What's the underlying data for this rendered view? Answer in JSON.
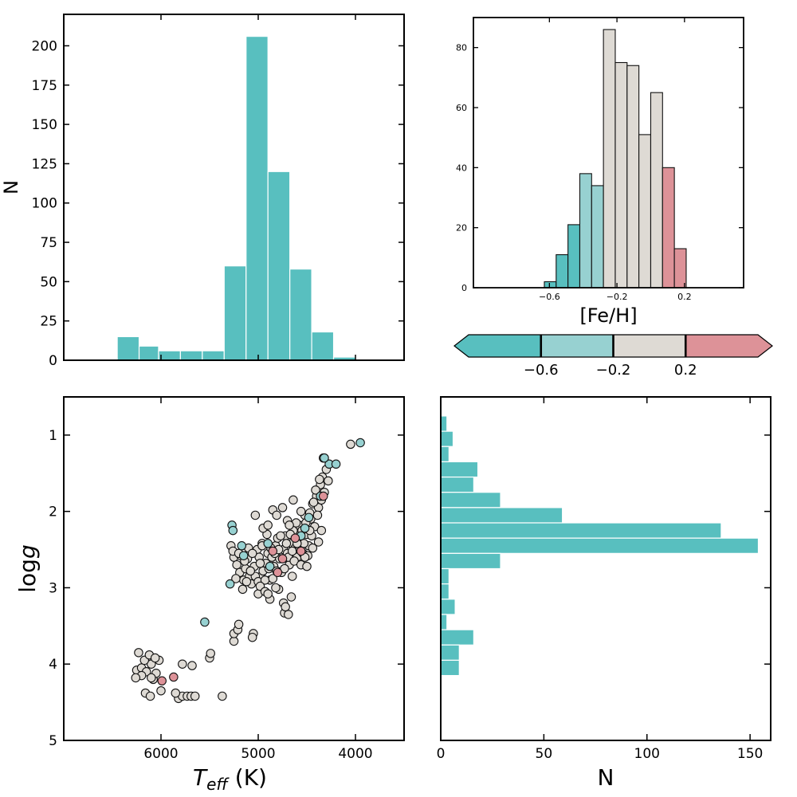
{
  "colors": {
    "teal": "#58bfbf",
    "light_teal": "#97d1d1",
    "beige": "#dedad4",
    "pink": "#dd9298",
    "frame": "#000000"
  },
  "chart_data": [
    {
      "id": "teff_hist",
      "type": "bar",
      "xlim": [
        7000,
        3500
      ],
      "ylim": [
        0,
        220
      ],
      "ylabel": "N",
      "yticks": [
        0,
        25,
        50,
        75,
        100,
        125,
        150,
        175,
        200
      ],
      "bin_edges": [
        6450,
        6225,
        6025,
        5800,
        5575,
        5350,
        5125,
        4900,
        4675,
        4450,
        4225,
        4000
      ],
      "values": [
        15,
        9,
        6,
        6,
        6,
        60,
        206,
        120,
        58,
        18,
        2
      ]
    },
    {
      "id": "feh_hist",
      "type": "bar",
      "xlabel": "[Fe/H]",
      "xlim": [
        -1.05,
        0.55
      ],
      "ylim": [
        0,
        90
      ],
      "xticks": [
        -0.6,
        -0.2,
        0.2
      ],
      "yticks": [
        0,
        20,
        40,
        60,
        80
      ],
      "bars": [
        {
          "x0": -0.63,
          "x1": -0.56,
          "value": 2,
          "cls": 0
        },
        {
          "x0": -0.56,
          "x1": -0.49,
          "value": 11,
          "cls": 0
        },
        {
          "x0": -0.49,
          "x1": -0.42,
          "value": 21,
          "cls": 0
        },
        {
          "x0": -0.42,
          "x1": -0.35,
          "value": 38,
          "cls": 1
        },
        {
          "x0": -0.35,
          "x1": -0.28,
          "value": 34,
          "cls": 1
        },
        {
          "x0": -0.28,
          "x1": -0.21,
          "value": 86,
          "cls": 2
        },
        {
          "x0": -0.21,
          "x1": -0.14,
          "value": 75,
          "cls": 2
        },
        {
          "x0": -0.14,
          "x1": -0.07,
          "value": 74,
          "cls": 2
        },
        {
          "x0": -0.07,
          "x1": 0.0,
          "value": 51,
          "cls": 2
        },
        {
          "x0": 0.0,
          "x1": 0.07,
          "value": 65,
          "cls": 2
        },
        {
          "x0": 0.07,
          "x1": 0.14,
          "value": 40,
          "cls": 3
        },
        {
          "x0": 0.14,
          "x1": 0.21,
          "value": 13,
          "cls": 3
        }
      ]
    },
    {
      "id": "colorbar",
      "type": "colorbar",
      "boundaries": [
        -0.6,
        -0.2,
        0.2
      ],
      "tick_labels": [
        "−0.6",
        "−0.2",
        "0.2"
      ],
      "segments": [
        "teal",
        "light_teal",
        "beige",
        "pink"
      ]
    },
    {
      "id": "kiel",
      "type": "scatter",
      "xlabel": "T",
      "xlabel_sub": "eff",
      "xlabel_unit": " (K)",
      "ylabel_main": "log",
      "ylabel_italic": "g",
      "xlim": [
        7000,
        3500
      ],
      "ylim": [
        5,
        0.5
      ],
      "xticks": [
        6000,
        5000,
        4000
      ],
      "yticks": [
        1,
        2,
        3,
        4,
        5
      ],
      "groups": [
        {
          "color": "beige",
          "points": [
            [
              6250,
              4.08
            ],
            [
              6200,
              4.05
            ],
            [
              6150,
              4.1
            ],
            [
              6100,
              4.0
            ],
            [
              6080,
              4.2
            ],
            [
              6050,
              4.12
            ],
            [
              6020,
              3.95
            ],
            [
              6230,
              3.85
            ],
            [
              6170,
              3.95
            ],
            [
              6120,
              3.88
            ],
            [
              6060,
              3.92
            ],
            [
              6100,
              4.18
            ],
            [
              6200,
              4.15
            ],
            [
              6260,
              4.18
            ],
            [
              6160,
              4.38
            ],
            [
              6110,
              4.42
            ],
            [
              6000,
              4.35
            ],
            [
              5820,
              4.45
            ],
            [
              5780,
              4.42
            ],
            [
              5730,
              4.42
            ],
            [
              5690,
              4.42
            ],
            [
              5650,
              4.42
            ],
            [
              5850,
              4.38
            ],
            [
              5780,
              4.0
            ],
            [
              5680,
              4.02
            ],
            [
              5500,
              3.92
            ],
            [
              5490,
              3.86
            ],
            [
              5370,
              4.42
            ],
            [
              5250,
              3.7
            ],
            [
              5250,
              3.6
            ],
            [
              5210,
              3.55
            ],
            [
              5200,
              3.48
            ],
            [
              5050,
              3.6
            ],
            [
              5060,
              3.65
            ],
            [
              4730,
              3.33
            ],
            [
              4690,
              3.35
            ],
            [
              5280,
              2.45
            ],
            [
              5250,
              2.6
            ],
            [
              5220,
              2.7
            ],
            [
              5190,
              2.8
            ],
            [
              5150,
              2.9
            ],
            [
              5130,
              2.75
            ],
            [
              5110,
              2.62
            ],
            [
              5090,
              2.85
            ],
            [
              5070,
              2.95
            ],
            [
              5040,
              2.72
            ],
            [
              5010,
              2.5
            ],
            [
              4990,
              2.6
            ],
            [
              4970,
              2.85
            ],
            [
              4950,
              2.78
            ],
            [
              4920,
              2.68
            ],
            [
              4900,
              2.55
            ],
            [
              4880,
              2.9
            ],
            [
              4860,
              2.6
            ],
            [
              4840,
              2.72
            ],
            [
              4820,
              2.45
            ],
            [
              4800,
              2.35
            ],
            [
              4780,
              2.62
            ],
            [
              4760,
              2.8
            ],
            [
              4740,
              2.5
            ],
            [
              4720,
              2.32
            ],
            [
              4700,
              2.55
            ],
            [
              4680,
              2.7
            ],
            [
              4660,
              2.42
            ],
            [
              4640,
              2.25
            ],
            [
              4620,
              2.48
            ],
            [
              4600,
              2.6
            ],
            [
              4580,
              2.18
            ],
            [
              4560,
              2.4
            ],
            [
              4540,
              2.55
            ],
            [
              4520,
              2.05
            ],
            [
              4500,
              2.3
            ],
            [
              4480,
              2.45
            ],
            [
              4460,
              2.1
            ],
            [
              4440,
              1.9
            ],
            [
              4420,
              2.2
            ],
            [
              4400,
              1.8
            ],
            [
              4380,
              1.95
            ],
            [
              4360,
              1.65
            ],
            [
              4340,
              1.55
            ],
            [
              4320,
              1.75
            ],
            [
              4300,
              1.45
            ],
            [
              4280,
              1.6
            ],
            [
              4330,
              1.3
            ],
            [
              4050,
              1.12
            ],
            [
              5260,
              2.52
            ],
            [
              5230,
              2.88
            ],
            [
              5180,
              2.58
            ],
            [
              5140,
              2.65
            ],
            [
              5100,
              2.48
            ],
            [
              5060,
              2.55
            ],
            [
              5030,
              2.85
            ],
            [
              5000,
              2.92
            ],
            [
              4960,
              2.42
            ],
            [
              4930,
              2.9
            ],
            [
              4910,
              2.3
            ],
            [
              4890,
              2.75
            ],
            [
              4870,
              2.48
            ],
            [
              4850,
              2.88
            ],
            [
              4830,
              2.55
            ],
            [
              4810,
              2.78
            ],
            [
              4790,
              2.5
            ],
            [
              4770,
              2.32
            ],
            [
              4750,
              2.62
            ],
            [
              4730,
              2.75
            ],
            [
              4710,
              2.42
            ],
            [
              4690,
              2.6
            ],
            [
              4670,
              2.3
            ],
            [
              4650,
              2.52
            ],
            [
              4630,
              2.65
            ],
            [
              4610,
              2.15
            ],
            [
              4590,
              2.35
            ],
            [
              4570,
              2.5
            ],
            [
              4550,
              2.25
            ],
            [
              4530,
              2.42
            ],
            [
              4510,
              2.15
            ],
            [
              4490,
              2.58
            ],
            [
              4470,
              2.02
            ],
            [
              4450,
              2.32
            ],
            [
              4430,
              1.88
            ],
            [
              4410,
              1.72
            ],
            [
              4390,
              2.05
            ],
            [
              4370,
              1.58
            ],
            [
              4350,
              1.85
            ],
            [
              4950,
              2.22
            ],
            [
              4900,
              2.18
            ],
            [
              4850,
              1.98
            ],
            [
              4750,
              1.95
            ],
            [
              4640,
              1.85
            ],
            [
              4560,
              2.0
            ],
            [
              4700,
              2.12
            ],
            [
              4600,
              2.42
            ],
            [
              4810,
              2.05
            ],
            [
              5030,
              2.05
            ],
            [
              5000,
              3.08
            ],
            [
              4980,
              2.98
            ],
            [
              4930,
              3.05
            ],
            [
              4880,
              3.15
            ],
            [
              4740,
              3.2
            ],
            [
              4720,
              3.25
            ],
            [
              4660,
              3.12
            ],
            [
              4790,
              3.02
            ],
            [
              4900,
              3.08
            ],
            [
              5160,
              3.02
            ],
            [
              4960,
              2.45
            ],
            [
              4560,
              2.7
            ],
            [
              4500,
              2.72
            ],
            [
              4440,
              2.48
            ],
            [
              4380,
              2.4
            ],
            [
              4650,
              2.85
            ],
            [
              4820,
              3.0
            ],
            [
              5200,
              2.55
            ],
            [
              5120,
              2.92
            ],
            [
              4680,
              2.18
            ],
            [
              4520,
              2.6
            ],
            [
              4470,
              2.25
            ],
            [
              4350,
              2.25
            ],
            [
              4980,
              2.68
            ],
            [
              5080,
              2.78
            ]
          ]
        },
        {
          "color": "light_teal",
          "points": [
            [
              5270,
              2.18
            ],
            [
              5260,
              2.25
            ],
            [
              5170,
              2.45
            ],
            [
              5150,
              2.58
            ],
            [
              5290,
              2.95
            ],
            [
              5550,
              3.45
            ],
            [
              4900,
              2.42
            ],
            [
              4880,
              2.72
            ],
            [
              4560,
              2.32
            ],
            [
              4520,
              2.22
            ],
            [
              4480,
              2.08
            ],
            [
              4360,
              1.8
            ],
            [
              4270,
              1.38
            ],
            [
              4200,
              1.38
            ],
            [
              4320,
              1.3
            ],
            [
              3950,
              1.1
            ]
          ]
        },
        {
          "color": "pink",
          "points": [
            [
              5990,
              4.22
            ],
            [
              5870,
              4.17
            ],
            [
              4850,
              2.52
            ],
            [
              4800,
              2.8
            ],
            [
              4750,
              2.62
            ],
            [
              4620,
              2.35
            ],
            [
              4560,
              2.52
            ],
            [
              4330,
              1.8
            ]
          ]
        }
      ]
    },
    {
      "id": "logg_hist",
      "type": "bar",
      "orientation": "horizontal",
      "xlabel": "N",
      "xlim": [
        0,
        160
      ],
      "ylim": [
        5,
        0.5
      ],
      "xticks": [
        0,
        50,
        100,
        150
      ],
      "bins": [
        [
          0.75,
          0.95,
          3
        ],
        [
          0.95,
          1.15,
          6
        ],
        [
          1.15,
          1.35,
          4
        ],
        [
          1.35,
          1.55,
          18
        ],
        [
          1.55,
          1.75,
          16
        ],
        [
          1.75,
          1.95,
          29
        ],
        [
          1.95,
          2.15,
          59
        ],
        [
          2.15,
          2.35,
          136
        ],
        [
          2.35,
          2.55,
          154
        ],
        [
          2.55,
          2.75,
          29
        ],
        [
          2.75,
          2.95,
          4
        ],
        [
          2.95,
          3.15,
          4
        ],
        [
          3.15,
          3.35,
          7
        ],
        [
          3.35,
          3.55,
          3
        ],
        [
          3.55,
          3.75,
          16
        ],
        [
          3.75,
          3.95,
          9
        ],
        [
          3.95,
          4.15,
          9
        ]
      ]
    }
  ]
}
